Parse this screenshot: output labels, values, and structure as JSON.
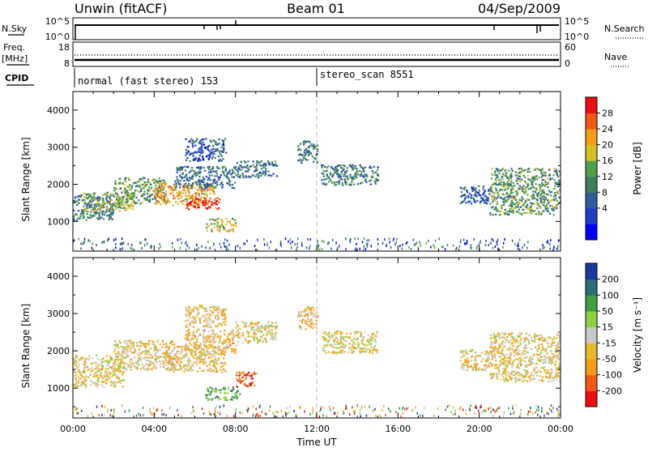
{
  "header": {
    "station": "Unwin (fitACF)",
    "beam": "Beam 01",
    "date": "04/Sep/2009"
  },
  "strips": {
    "nsky": {
      "label": "N.Sky",
      "ticks": [
        "10^5",
        "10^0"
      ]
    },
    "nsearch": {
      "label": "N.Search",
      "ticks": [
        "10^5",
        "10^0"
      ]
    },
    "freq": {
      "label": "Freq.",
      "unit": "[MHz]",
      "ticks": [
        "18",
        "8"
      ]
    },
    "nave": {
      "label": "Nave",
      "ticks": [
        "60",
        "0"
      ]
    },
    "cpid": {
      "label": "CPID",
      "segments": [
        "normal (fast stereo) 153",
        "stereo_scan 8551"
      ]
    }
  },
  "chart_data": [
    {
      "type": "heatmap",
      "panel": "power",
      "ylabel": "Slant Range [km]",
      "xlabel": "",
      "ylim": [
        200,
        4500
      ],
      "yticks": [
        "1000",
        "2000",
        "3000",
        "4000"
      ],
      "xlim": [
        0,
        24
      ],
      "colorbar": {
        "label": "Power [dB]",
        "ticks": [
          "28",
          "24",
          "20",
          "16",
          "12",
          "8",
          "4"
        ],
        "colors": [
          "#0000ff",
          "#1f3fbf",
          "#2e5e9b",
          "#3c7e5c",
          "#4fa04a",
          "#d6c02a",
          "#f59c1c",
          "#f05a14",
          "#e81010"
        ]
      },
      "cells": [
        {
          "t": [
            0.0,
            2.0
          ],
          "r": [
            1050,
            1750
          ],
          "level": 0.35
        },
        {
          "t": [
            0.5,
            3.0
          ],
          "r": [
            1300,
            1800
          ],
          "level": 0.55
        },
        {
          "t": [
            2.0,
            4.5
          ],
          "r": [
            1500,
            2200
          ],
          "level": 0.45
        },
        {
          "t": [
            4.0,
            7.0
          ],
          "r": [
            1450,
            2050
          ],
          "level": 0.7
        },
        {
          "t": [
            5.5,
            7.2
          ],
          "r": [
            1350,
            1650
          ],
          "level": 0.95
        },
        {
          "t": [
            5.0,
            8.0
          ],
          "r": [
            1900,
            2500
          ],
          "level": 0.3
        },
        {
          "t": [
            6.5,
            8.0
          ],
          "r": [
            750,
            1100
          ],
          "level": 0.6
        },
        {
          "t": [
            5.5,
            7.5
          ],
          "r": [
            2650,
            3250
          ],
          "level": 0.25
        },
        {
          "t": [
            8.0,
            10.0
          ],
          "r": [
            2200,
            2650
          ],
          "level": 0.3
        },
        {
          "t": [
            11.0,
            12.0
          ],
          "r": [
            2600,
            3200
          ],
          "level": 0.35
        },
        {
          "t": [
            12.2,
            15.0
          ],
          "r": [
            2000,
            2550
          ],
          "level": 0.35
        },
        {
          "t": [
            19.0,
            20.5
          ],
          "r": [
            1500,
            2000
          ],
          "level": 0.25
        },
        {
          "t": [
            20.5,
            24.0
          ],
          "r": [
            1200,
            2450
          ],
          "level": 0.45
        }
      ]
    },
    {
      "type": "heatmap",
      "panel": "velocity",
      "ylabel": "Slant Range [km]",
      "xlabel": "Time UT",
      "ylim": [
        200,
        4500
      ],
      "yticks": [
        "1000",
        "2000",
        "3000",
        "4000"
      ],
      "xlim": [
        0,
        24
      ],
      "xticks": [
        "00:00",
        "04:00",
        "08:00",
        "12:00",
        "16:00",
        "20:00",
        "00:00"
      ],
      "colorbar": {
        "label": "Velocity [m s⁻¹]",
        "ticks": [
          "200",
          "100",
          "50",
          "15",
          "-15",
          "-50",
          "-100",
          "-200"
        ],
        "colors": [
          "#e81010",
          "#f05a14",
          "#f59c1c",
          "#e8b830",
          "#c8c8c8",
          "#8cd040",
          "#3ca040",
          "#2a6e7a",
          "#1a3a9b"
        ]
      },
      "cells": [
        {
          "t": [
            0.0,
            2.5
          ],
          "r": [
            1050,
            1900
          ],
          "level": 0.45
        },
        {
          "t": [
            2.0,
            5.0
          ],
          "r": [
            1500,
            2300
          ],
          "level": 0.42
        },
        {
          "t": [
            4.5,
            7.5
          ],
          "r": [
            1450,
            2150
          ],
          "level": 0.4
        },
        {
          "t": [
            5.5,
            8.0
          ],
          "r": [
            1900,
            2600
          ],
          "level": 0.38
        },
        {
          "t": [
            6.5,
            8.2
          ],
          "r": [
            700,
            1050
          ],
          "level": 0.72
        },
        {
          "t": [
            8.0,
            9.0
          ],
          "r": [
            1050,
            1450
          ],
          "level": 0.15
        },
        {
          "t": [
            5.5,
            7.5
          ],
          "r": [
            2650,
            3250
          ],
          "level": 0.4
        },
        {
          "t": [
            8.0,
            10.0
          ],
          "r": [
            2200,
            2800
          ],
          "level": 0.45
        },
        {
          "t": [
            11.0,
            12.0
          ],
          "r": [
            2600,
            3200
          ],
          "level": 0.4
        },
        {
          "t": [
            12.2,
            15.0
          ],
          "r": [
            1950,
            2550
          ],
          "level": 0.44
        },
        {
          "t": [
            19.0,
            20.5
          ],
          "r": [
            1500,
            2050
          ],
          "level": 0.43
        },
        {
          "t": [
            20.5,
            24.0
          ],
          "r": [
            1200,
            2500
          ],
          "level": 0.42
        }
      ]
    }
  ]
}
